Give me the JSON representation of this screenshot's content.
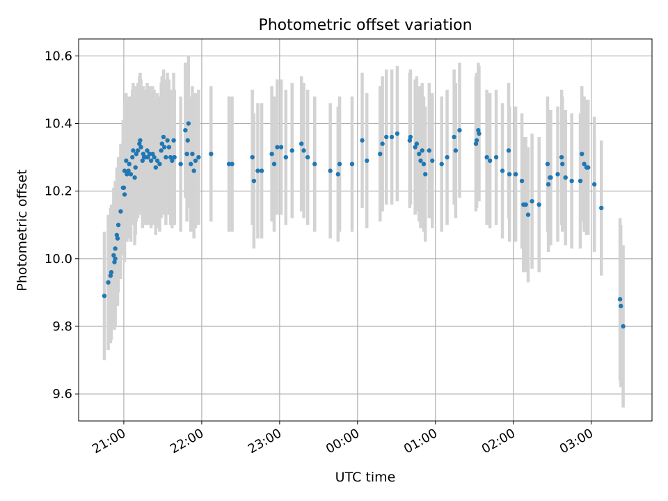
{
  "chart_data": {
    "type": "scatter",
    "title": "Photometric offset variation",
    "xlabel": "UTC time",
    "ylabel": "Photometric offset",
    "x_unit": "UTC time of night (hours past 21:00; values > 3 are after midnight)",
    "xlim": [
      -0.58,
      6.78
    ],
    "ylim": [
      9.52,
      10.65
    ],
    "x_ticks": [
      {
        "x": 0,
        "label": "21:00"
      },
      {
        "x": 1,
        "label": "22:00"
      },
      {
        "x": 2,
        "label": "23:00"
      },
      {
        "x": 3,
        "label": "00:00"
      },
      {
        "x": 4,
        "label": "01:00"
      },
      {
        "x": 5,
        "label": "02:00"
      },
      {
        "x": 6,
        "label": "03:00"
      }
    ],
    "y_ticks": [
      {
        "y": 9.6,
        "label": "9.6"
      },
      {
        "y": 9.8,
        "label": "9.8"
      },
      {
        "y": 10.0,
        "label": "10.0"
      },
      {
        "y": 10.2,
        "label": "10.2"
      },
      {
        "y": 10.4,
        "label": "10.4"
      },
      {
        "y": 10.6,
        "label": "10.6"
      }
    ],
    "grid": true,
    "colors": {
      "points": "#1f77b4",
      "error_bars": "#d3d3d3",
      "grid": "#b0b0b0"
    },
    "series": [
      {
        "points": [
          [
            -0.25,
            9.89,
            0.19
          ],
          [
            -0.2,
            9.93,
            0.2
          ],
          [
            -0.17,
            9.95,
            0.2
          ],
          [
            -0.16,
            9.96,
            0.2
          ],
          [
            -0.13,
            10.01,
            0.2
          ],
          [
            -0.12,
            9.99,
            0.2
          ],
          [
            -0.11,
            10.0,
            0.2
          ],
          [
            -0.11,
            10.03,
            0.2
          ],
          [
            -0.09,
            10.07,
            0.2
          ],
          [
            -0.08,
            10.06,
            0.2
          ],
          [
            -0.07,
            10.1,
            0.2
          ],
          [
            -0.04,
            10.14,
            0.2
          ],
          [
            -0.01,
            10.21,
            0.2
          ],
          [
            0.0,
            10.21,
            0.2
          ],
          [
            0.01,
            10.19,
            0.2
          ],
          [
            0.01,
            10.26,
            0.2
          ],
          [
            0.03,
            10.29,
            0.2
          ],
          [
            0.04,
            10.25,
            0.2
          ],
          [
            0.06,
            10.26,
            0.2
          ],
          [
            0.07,
            10.28,
            0.2
          ],
          [
            0.09,
            10.25,
            0.2
          ],
          [
            0.11,
            10.3,
            0.2
          ],
          [
            0.12,
            10.32,
            0.2
          ],
          [
            0.14,
            10.24,
            0.2
          ],
          [
            0.15,
            10.27,
            0.2
          ],
          [
            0.16,
            10.31,
            0.2
          ],
          [
            0.18,
            10.32,
            0.2
          ],
          [
            0.2,
            10.34,
            0.2
          ],
          [
            0.21,
            10.35,
            0.2
          ],
          [
            0.22,
            10.33,
            0.2
          ],
          [
            0.24,
            10.29,
            0.2
          ],
          [
            0.25,
            10.31,
            0.2
          ],
          [
            0.26,
            10.3,
            0.2
          ],
          [
            0.28,
            10.3,
            0.2
          ],
          [
            0.3,
            10.32,
            0.2
          ],
          [
            0.31,
            10.3,
            0.2
          ],
          [
            0.33,
            10.31,
            0.2
          ],
          [
            0.35,
            10.29,
            0.2
          ],
          [
            0.37,
            10.31,
            0.2
          ],
          [
            0.39,
            10.3,
            0.2
          ],
          [
            0.41,
            10.27,
            0.2
          ],
          [
            0.43,
            10.29,
            0.2
          ],
          [
            0.46,
            10.28,
            0.2
          ],
          [
            0.48,
            10.32,
            0.2
          ],
          [
            0.49,
            10.34,
            0.2
          ],
          [
            0.51,
            10.36,
            0.2
          ],
          [
            0.52,
            10.33,
            0.2
          ],
          [
            0.54,
            10.3,
            0.2
          ],
          [
            0.56,
            10.35,
            0.2
          ],
          [
            0.58,
            10.33,
            0.2
          ],
          [
            0.6,
            10.3,
            0.2
          ],
          [
            0.62,
            10.29,
            0.2
          ],
          [
            0.64,
            10.35,
            0.2
          ],
          [
            0.65,
            10.3,
            0.2
          ],
          [
            0.73,
            10.28,
            0.2
          ],
          [
            0.79,
            10.38,
            0.2
          ],
          [
            0.81,
            10.31,
            0.2
          ],
          [
            0.82,
            10.35,
            0.2
          ],
          [
            0.83,
            10.4,
            0.2
          ],
          [
            0.86,
            10.28,
            0.2
          ],
          [
            0.88,
            10.31,
            0.2
          ],
          [
            0.9,
            10.26,
            0.2
          ],
          [
            0.92,
            10.29,
            0.2
          ],
          [
            0.96,
            10.3,
            0.2
          ],
          [
            1.12,
            10.31,
            0.2
          ],
          [
            1.35,
            10.28,
            0.2
          ],
          [
            1.39,
            10.28,
            0.2
          ],
          [
            1.65,
            10.3,
            0.2
          ],
          [
            1.67,
            10.23,
            0.2
          ],
          [
            1.72,
            10.26,
            0.2
          ],
          [
            1.77,
            10.26,
            0.2
          ],
          [
            1.9,
            10.31,
            0.2
          ],
          [
            1.93,
            10.28,
            0.2
          ],
          [
            1.97,
            10.33,
            0.2
          ],
          [
            2.02,
            10.33,
            0.2
          ],
          [
            2.08,
            10.3,
            0.2
          ],
          [
            2.16,
            10.32,
            0.2
          ],
          [
            2.28,
            10.34,
            0.2
          ],
          [
            2.31,
            10.32,
            0.2
          ],
          [
            2.36,
            10.3,
            0.2
          ],
          [
            2.45,
            10.28,
            0.2
          ],
          [
            2.65,
            10.26,
            0.2
          ],
          [
            2.75,
            10.25,
            0.2
          ],
          [
            2.77,
            10.28,
            0.2
          ],
          [
            2.93,
            10.28,
            0.2
          ],
          [
            3.06,
            10.35,
            0.2
          ],
          [
            3.12,
            10.29,
            0.2
          ],
          [
            3.29,
            10.31,
            0.2
          ],
          [
            3.32,
            10.34,
            0.2
          ],
          [
            3.37,
            10.36,
            0.2
          ],
          [
            3.44,
            10.36,
            0.2
          ],
          [
            3.51,
            10.37,
            0.2
          ],
          [
            3.67,
            10.35,
            0.2
          ],
          [
            3.68,
            10.36,
            0.2
          ],
          [
            3.74,
            10.33,
            0.2
          ],
          [
            3.76,
            10.34,
            0.2
          ],
          [
            3.79,
            10.31,
            0.2
          ],
          [
            3.81,
            10.29,
            0.2
          ],
          [
            3.83,
            10.32,
            0.2
          ],
          [
            3.85,
            10.28,
            0.2
          ],
          [
            3.87,
            10.25,
            0.2
          ],
          [
            3.92,
            10.32,
            0.2
          ],
          [
            3.96,
            10.29,
            0.2
          ],
          [
            4.08,
            10.28,
            0.2
          ],
          [
            4.15,
            10.3,
            0.2
          ],
          [
            4.24,
            10.36,
            0.2
          ],
          [
            4.26,
            10.32,
            0.2
          ],
          [
            4.31,
            10.38,
            0.2
          ],
          [
            4.52,
            10.34,
            0.2
          ],
          [
            4.53,
            10.35,
            0.2
          ],
          [
            4.55,
            10.38,
            0.2
          ],
          [
            4.56,
            10.37,
            0.2
          ],
          [
            4.66,
            10.3,
            0.2
          ],
          [
            4.7,
            10.29,
            0.2
          ],
          [
            4.78,
            10.3,
            0.2
          ],
          [
            4.86,
            10.26,
            0.2
          ],
          [
            4.94,
            10.32,
            0.2
          ],
          [
            4.95,
            10.25,
            0.2
          ],
          [
            5.03,
            10.25,
            0.2
          ],
          [
            5.11,
            10.23,
            0.2
          ],
          [
            5.13,
            10.16,
            0.2
          ],
          [
            5.16,
            10.16,
            0.2
          ],
          [
            5.19,
            10.13,
            0.2
          ],
          [
            5.24,
            10.17,
            0.2
          ],
          [
            5.33,
            10.16,
            0.2
          ],
          [
            5.44,
            10.28,
            0.2
          ],
          [
            5.45,
            10.22,
            0.2
          ],
          [
            5.47,
            10.24,
            0.2
          ],
          [
            5.48,
            10.24,
            0.2
          ],
          [
            5.57,
            10.25,
            0.2
          ],
          [
            5.62,
            10.3,
            0.2
          ],
          [
            5.63,
            10.28,
            0.2
          ],
          [
            5.67,
            10.24,
            0.2
          ],
          [
            5.75,
            10.23,
            0.2
          ],
          [
            5.86,
            10.23,
            0.2
          ],
          [
            5.88,
            10.31,
            0.2
          ],
          [
            5.91,
            10.28,
            0.2
          ],
          [
            5.94,
            10.27,
            0.2
          ],
          [
            5.96,
            10.27,
            0.2
          ],
          [
            6.04,
            10.22,
            0.2
          ],
          [
            6.13,
            10.15,
            0.2
          ],
          [
            6.37,
            9.88,
            0.24
          ],
          [
            6.38,
            9.86,
            0.24
          ],
          [
            6.41,
            9.8,
            0.24
          ]
        ]
      }
    ]
  }
}
